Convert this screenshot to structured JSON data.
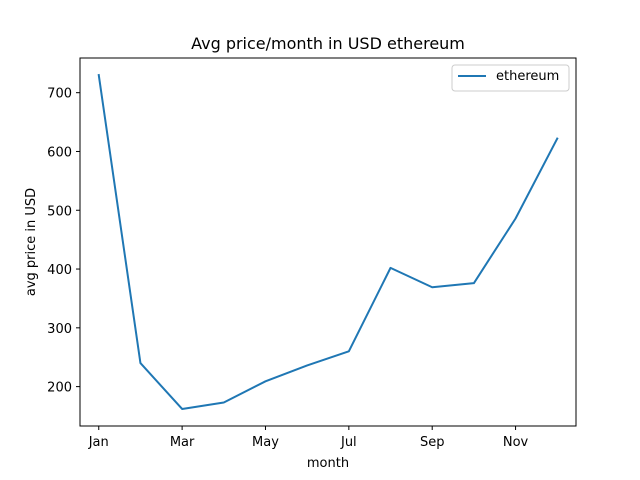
{
  "chart_data": {
    "type": "line",
    "title": "Avg price/month in USD ethereum",
    "xlabel": "month",
    "ylabel": "avg price in USD",
    "x": [
      1,
      2,
      3,
      4,
      5,
      6,
      7,
      8,
      9,
      10,
      11,
      12
    ],
    "x_ticks": [
      {
        "value": 1,
        "label": "Jan"
      },
      {
        "value": 3,
        "label": "Mar"
      },
      {
        "value": 5,
        "label": "May"
      },
      {
        "value": 7,
        "label": "Jul"
      },
      {
        "value": 9,
        "label": "Sep"
      },
      {
        "value": 11,
        "label": "Nov"
      }
    ],
    "y_ticks": [
      200,
      300,
      400,
      500,
      600,
      700
    ],
    "xlim": [
      0.55,
      12.45
    ],
    "ylim": [
      133,
      759
    ],
    "grid": false,
    "legend_position": "top-right",
    "series": [
      {
        "name": "ethereum",
        "color": "#1f77b4",
        "values": [
          730,
          240,
          162,
          173,
          209,
          236,
          260,
          402,
          369,
          376,
          486,
          622
        ]
      }
    ]
  }
}
